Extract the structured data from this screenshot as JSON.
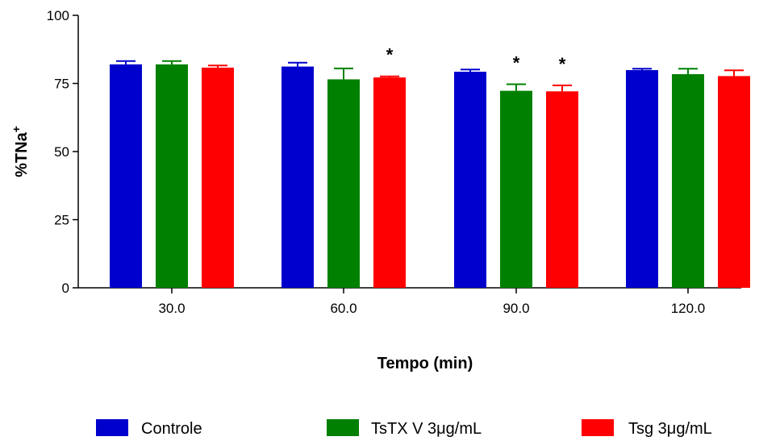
{
  "chart_data": {
    "type": "bar",
    "xlabel": "Tempo (min)",
    "ylabel": "%TNa",
    "ylabel_superscript": "+",
    "ylim": [
      0,
      100
    ],
    "yticks": [
      "0",
      "25",
      "50",
      "75",
      "100"
    ],
    "ytick_values": [
      0,
      25,
      50,
      75,
      100
    ],
    "categories": [
      "30.0",
      "60.0",
      "90.0",
      "120.0"
    ],
    "legend_position": "bottom",
    "grid": false,
    "series": [
      {
        "name": "Controle",
        "color": "#0000cc",
        "values": [
          82.0,
          81.2,
          79.3,
          79.9
        ],
        "errors": [
          1.2,
          1.4,
          0.8,
          0.5
        ],
        "significance": [
          "",
          "",
          "",
          ""
        ]
      },
      {
        "name": "TsTX V 3μg/mL",
        "color": "#008000",
        "values": [
          82.0,
          76.5,
          72.3,
          78.4
        ],
        "errors": [
          1.2,
          4.0,
          2.4,
          2.0
        ],
        "significance": [
          "",
          "",
          "*",
          ""
        ]
      },
      {
        "name": "Tsg 3μg/mL",
        "color": "#ff0000",
        "values": [
          80.8,
          77.2,
          72.1,
          77.7
        ],
        "errors": [
          0.8,
          0.4,
          2.2,
          2.1
        ],
        "significance": [
          "",
          "*",
          "*",
          ""
        ]
      }
    ]
  }
}
